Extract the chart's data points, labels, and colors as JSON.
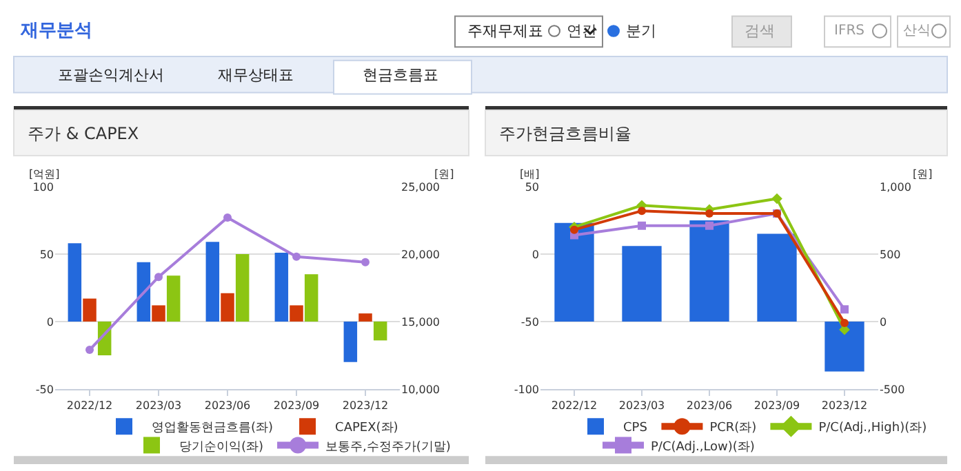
{
  "chart_data": [
    {
      "type": "other",
      "title": "재무분석",
      "annotations": [
        "주재무제표",
        "연간",
        "분기",
        "검색",
        "IFRS",
        "산식",
        "포괄손익계산서",
        "재무상태표",
        "현금흐름표"
      ]
    },
    {
      "type": "bar",
      "title": "주가 & CAPEX",
      "ylabel": "[억원]",
      "y2label": "[원]",
      "categories": [
        "2022/12",
        "2023/03",
        "2023/06",
        "2023/09",
        "2023/12"
      ],
      "series": [
        {
          "name": "영업활동현금흐름(좌)",
          "color": "#2369dc",
          "values": [
            58,
            44,
            59,
            51,
            -30
          ]
        },
        {
          "name": "CAPEX(좌)",
          "color": "#d23a07",
          "values": [
            17,
            12,
            21,
            12,
            6
          ]
        },
        {
          "name": "당기순이익(좌)",
          "color": "#8cc513",
          "values": [
            -25,
            34,
            50,
            35,
            -14
          ]
        },
        {
          "name": "보통주,수정주가(기말)",
          "type": "line",
          "axis": "y2",
          "marker": "circle",
          "color": "#a77ddb",
          "values": [
            12900,
            18300,
            22700,
            19800,
            19400
          ]
        }
      ],
      "ylim": [
        -50,
        100
      ],
      "yticks": [
        -50,
        0,
        50,
        100
      ],
      "y2lim": [
        10000,
        25000
      ],
      "y2ticks": [
        {
          "value": 10000,
          "label": "10,000"
        },
        {
          "value": 15000,
          "label": "15,000"
        },
        {
          "value": 20000,
          "label": "20,000"
        },
        {
          "value": 25000,
          "label": "25,000"
        }
      ],
      "grid": "y",
      "legend": "bottom"
    },
    {
      "type": "bar",
      "title": "주가현금흐름비율",
      "ylabel": "[배]",
      "y2label": "[원]",
      "categories": [
        "2022/12",
        "2023/03",
        "2023/06",
        "2023/09",
        "2023/12"
      ],
      "series": [
        {
          "name": "CPS",
          "color": "#2369dc",
          "axis": "y2",
          "values": [
            730,
            560,
            750,
            650,
            -370
          ]
        },
        {
          "name": "PCR(좌)",
          "type": "line",
          "marker": "circle",
          "color": "#d23a07",
          "values": [
            18,
            32,
            30,
            30,
            -51
          ]
        },
        {
          "name": "P/C(Adj.,High)(좌)",
          "type": "line",
          "marker": "diamond",
          "color": "#8cc513",
          "values": [
            20,
            36,
            33,
            41,
            -56
          ]
        },
        {
          "name": "P/C(Adj.,Low)(좌)",
          "type": "line",
          "marker": "square",
          "color": "#a77ddb",
          "values": [
            14,
            21,
            21,
            30,
            -41
          ]
        }
      ],
      "ylim": [
        -100,
        50
      ],
      "yticks": [
        -100,
        -50,
        0,
        50
      ],
      "y2lim": [
        -500,
        1000
      ],
      "y2ticks": [
        -500,
        0,
        500,
        {
          "value": 1000,
          "label": "1,000"
        }
      ],
      "grid": "y",
      "legend": "bottom"
    }
  ]
}
